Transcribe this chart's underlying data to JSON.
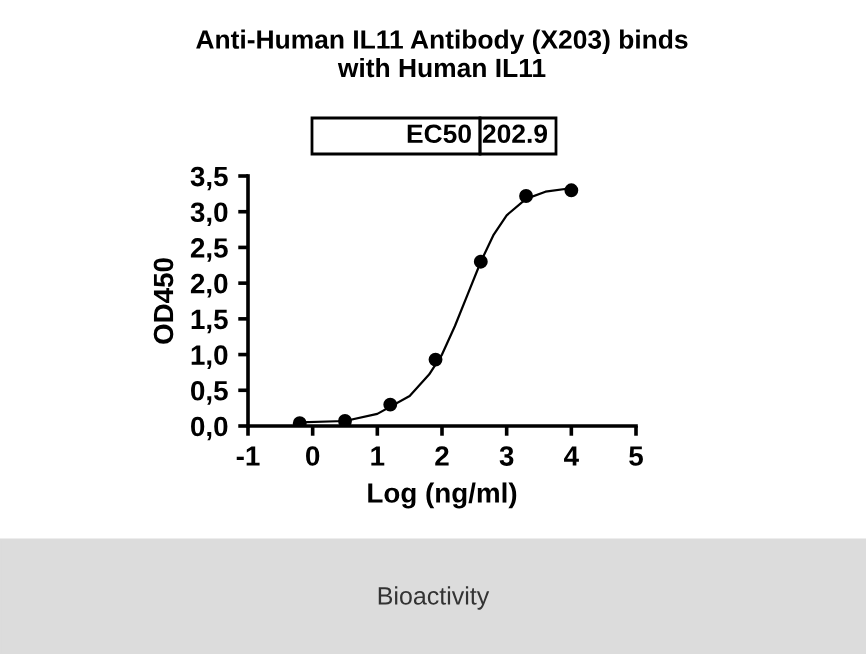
{
  "chart_data": {
    "type": "scatter",
    "title": "Anti-Human IL11 Antibody (X203) binds\nwith Human IL11",
    "xlabel": "Log (ng/ml)",
    "ylabel": "OD450",
    "annotations": [
      "EC50",
      "202.9",
      "Bioactivity"
    ],
    "x": [
      -0.2,
      0.5,
      1.2,
      1.9,
      2.6,
      3.3,
      4.0
    ],
    "series": [
      {
        "color": "#000000",
        "marker": "circle",
        "values": [
          0.04,
          0.07,
          0.3,
          0.93,
          2.3,
          3.22,
          3.3
        ]
      },
      {
        "type": "line",
        "color": "#000000",
        "marker": "none",
        "x": [
          -0.2,
          0.5,
          1.0,
          1.5,
          1.8,
          2.0,
          2.2,
          2.4,
          2.6,
          2.8,
          3.0,
          3.3,
          3.6,
          4.0
        ],
        "values": [
          0.05,
          0.07,
          0.17,
          0.42,
          0.72,
          1.0,
          1.4,
          1.85,
          2.3,
          2.68,
          2.95,
          3.18,
          3.28,
          3.33
        ]
      }
    ],
    "xlim": [
      -1,
      5
    ],
    "xticks": [
      -1,
      0,
      1,
      2,
      3,
      4,
      5
    ],
    "ylim": [
      0,
      3.5
    ],
    "yticks": [
      {
        "value": 0,
        "label": "0,0"
      },
      {
        "value": 0.5,
        "label": "0,5"
      },
      {
        "value": 1,
        "label": "1,0"
      },
      {
        "value": 1.5,
        "label": "1,5"
      },
      {
        "value": 2,
        "label": "2,0"
      },
      {
        "value": 2.5,
        "label": "2,5"
      },
      {
        "value": 3,
        "label": "3,0"
      },
      {
        "value": 3.5,
        "label": "3,5"
      }
    ],
    "grid": false
  }
}
